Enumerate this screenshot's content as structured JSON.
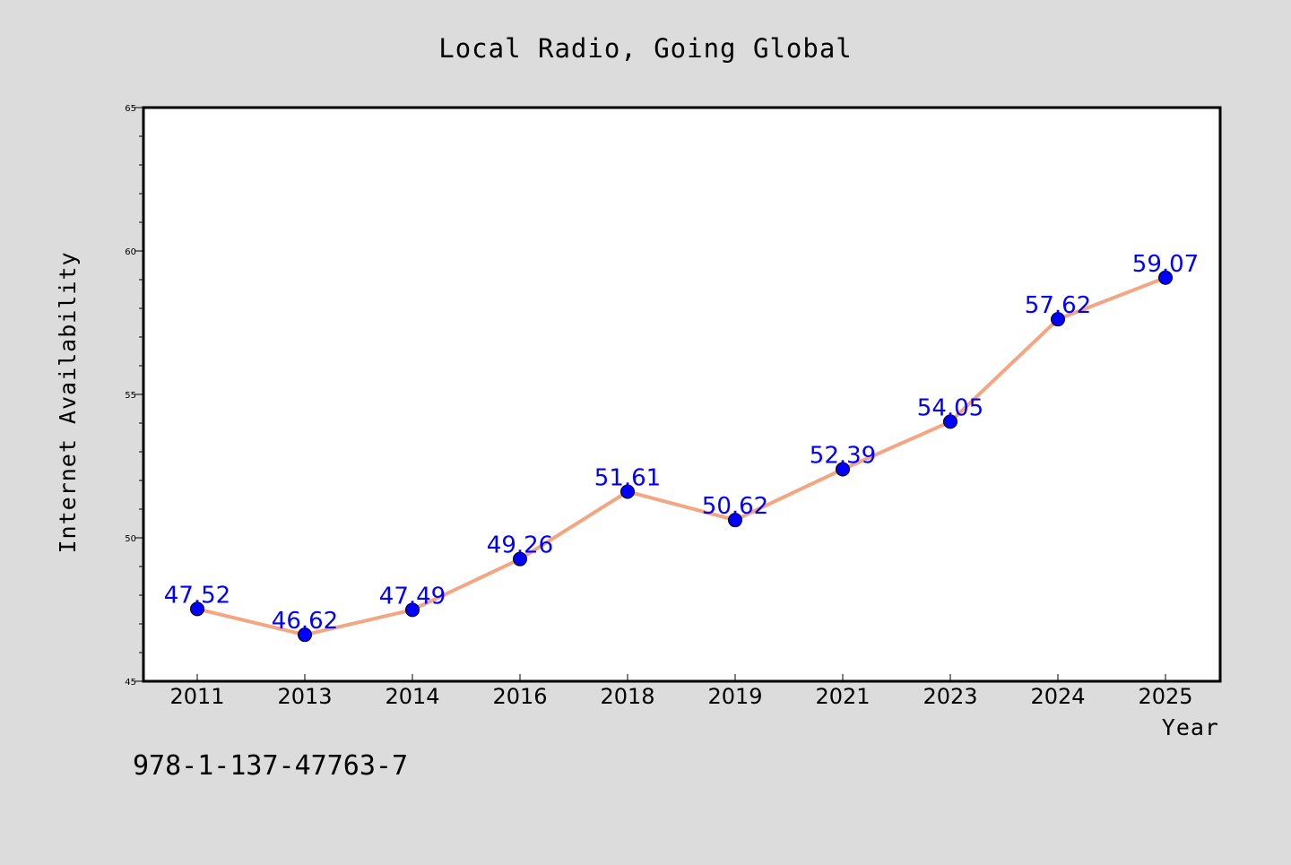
{
  "chart_data": {
    "type": "line",
    "title": "Local Radio, Going Global",
    "xlabel": "Year",
    "ylabel": "Internet Availability",
    "categories": [
      "2011",
      "2013",
      "2014",
      "2016",
      "2018",
      "2019",
      "2021",
      "2023",
      "2024",
      "2025"
    ],
    "series": [
      {
        "values": [
          47.52,
          46.62,
          47.49,
          49.26,
          51.61,
          50.62,
          52.39,
          54.05,
          57.62,
          59.07
        ],
        "data_labels": [
          "47.52",
          "46.62",
          "47.49",
          "49.26",
          "51.61",
          "50.62",
          "52.39",
          "54.05",
          "57.62",
          "59.07"
        ]
      }
    ],
    "ylim": [
      45,
      65
    ],
    "y_major_ticks": [
      45,
      50,
      55,
      60,
      65
    ],
    "y_minor_step": 1,
    "grid": false,
    "legend": "none",
    "colors": {
      "line": "#f4a582",
      "marker": "#0000ff",
      "data_label": "#0000ff",
      "background": "#dcdcdc",
      "plot_background": "#ffffff"
    }
  },
  "footer": {
    "isbn": "978-1-137-47763-7"
  }
}
